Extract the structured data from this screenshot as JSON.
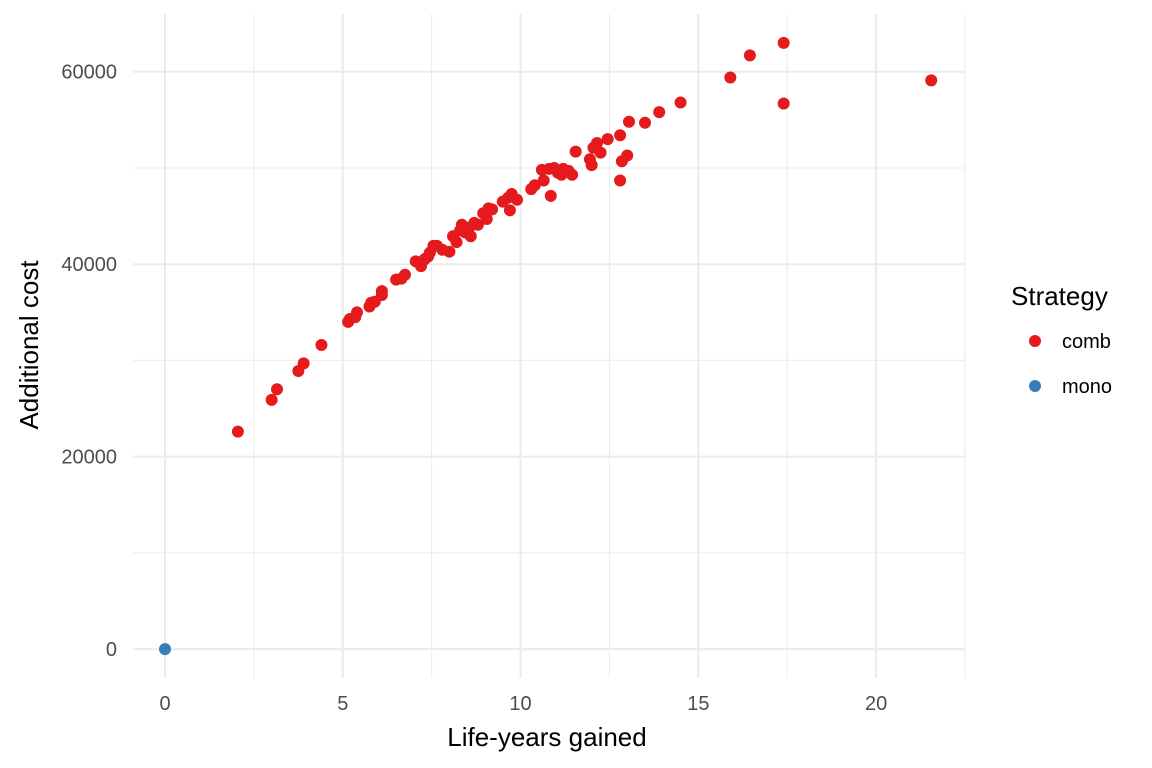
{
  "chart_data": {
    "type": "scatter",
    "title": "",
    "xlabel": "Life-years gained",
    "ylabel": "Additional cost",
    "xlim": [
      -0.9,
      22.5
    ],
    "ylim": [
      -3000,
      66000
    ],
    "x_ticks": [
      "0",
      "5",
      "10",
      "15",
      "20"
    ],
    "y_ticks": [
      "0",
      "20000",
      "40000",
      "60000"
    ],
    "grid": true,
    "legend": {
      "title": "Strategy",
      "position": "right"
    },
    "series": [
      {
        "name": "comb",
        "color": "#E41A1C",
        "points": [
          [
            2.05,
            22600
          ],
          [
            3.0,
            25900
          ],
          [
            3.15,
            27000
          ],
          [
            3.75,
            28900
          ],
          [
            3.9,
            29700
          ],
          [
            4.4,
            31600
          ],
          [
            5.15,
            34000
          ],
          [
            5.2,
            34300
          ],
          [
            5.35,
            34500
          ],
          [
            5.4,
            35000
          ],
          [
            5.75,
            35600
          ],
          [
            5.8,
            36000
          ],
          [
            5.9,
            36100
          ],
          [
            6.1,
            36800
          ],
          [
            6.1,
            37200
          ],
          [
            6.5,
            38400
          ],
          [
            6.65,
            38500
          ],
          [
            6.75,
            38900
          ],
          [
            7.05,
            40300
          ],
          [
            7.2,
            39800
          ],
          [
            7.3,
            40500
          ],
          [
            7.4,
            40800
          ],
          [
            7.45,
            41200
          ],
          [
            7.55,
            41900
          ],
          [
            7.65,
            41900
          ],
          [
            7.8,
            41500
          ],
          [
            8.0,
            41300
          ],
          [
            8.1,
            42900
          ],
          [
            8.2,
            42300
          ],
          [
            8.3,
            43500
          ],
          [
            8.35,
            44100
          ],
          [
            8.45,
            43300
          ],
          [
            8.55,
            43800
          ],
          [
            8.6,
            42900
          ],
          [
            8.7,
            44300
          ],
          [
            8.8,
            44100
          ],
          [
            8.95,
            45300
          ],
          [
            9.05,
            44700
          ],
          [
            9.1,
            45800
          ],
          [
            9.2,
            45700
          ],
          [
            9.5,
            46500
          ],
          [
            9.65,
            46900
          ],
          [
            9.7,
            45600
          ],
          [
            9.75,
            47300
          ],
          [
            9.9,
            46700
          ],
          [
            10.3,
            47800
          ],
          [
            10.4,
            48200
          ],
          [
            10.65,
            48700
          ],
          [
            10.6,
            49800
          ],
          [
            10.8,
            49900
          ],
          [
            10.85,
            47100
          ],
          [
            10.95,
            50000
          ],
          [
            11.05,
            49500
          ],
          [
            11.15,
            49300
          ],
          [
            11.2,
            49900
          ],
          [
            11.35,
            49700
          ],
          [
            11.45,
            49300
          ],
          [
            11.55,
            51700
          ],
          [
            11.95,
            50900
          ],
          [
            12.0,
            50300
          ],
          [
            12.05,
            52100
          ],
          [
            12.15,
            52600
          ],
          [
            12.25,
            51600
          ],
          [
            12.45,
            53000
          ],
          [
            12.8,
            53400
          ],
          [
            12.8,
            48700
          ],
          [
            12.85,
            50700
          ],
          [
            13.0,
            51300
          ],
          [
            13.05,
            54800
          ],
          [
            13.5,
            54700
          ],
          [
            13.9,
            55800
          ],
          [
            14.5,
            56800
          ],
          [
            15.9,
            59400
          ],
          [
            16.45,
            61700
          ],
          [
            17.4,
            63000
          ],
          [
            17.4,
            56700
          ],
          [
            21.55,
            59100
          ]
        ]
      },
      {
        "name": "mono",
        "color": "#377EB8",
        "points": [
          [
            0,
            0
          ]
        ]
      }
    ]
  }
}
